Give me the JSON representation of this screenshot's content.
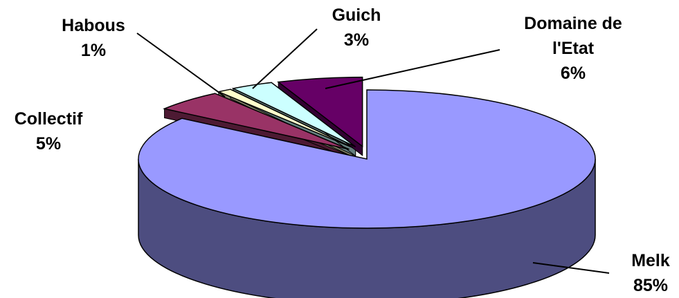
{
  "chart_data": {
    "type": "pie",
    "style": "3d-exploded",
    "slices": [
      {
        "label": "Melk",
        "percent_label": "85%",
        "value": 85,
        "color": "#9999ff"
      },
      {
        "label": "Collectif",
        "percent_label": "5%",
        "value": 5,
        "color": "#993366"
      },
      {
        "label": "Habous",
        "percent_label": "1%",
        "value": 1,
        "color": "#ffffcc"
      },
      {
        "label": "Guich",
        "percent_label": "3%",
        "value": 3,
        "color": "#ccffff"
      },
      {
        "label": "Domaine de l'Etat",
        "label_lines": [
          "Domaine de",
          "l'Etat"
        ],
        "percent_label": "6%",
        "value": 6,
        "color": "#660066"
      }
    ],
    "legend": "none"
  }
}
